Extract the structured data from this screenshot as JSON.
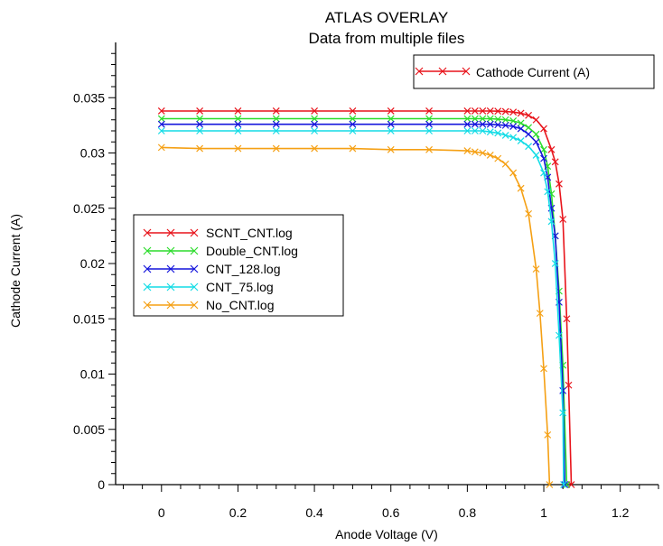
{
  "chart_data": {
    "type": "line",
    "title": "ATLAS OVERLAY",
    "subtitle": "Data from multiple files",
    "xlabel": "Anode Voltage (V)",
    "ylabel": "Cathode Current (A)",
    "xlim": [
      -0.12,
      1.3
    ],
    "ylim": [
      0,
      0.04
    ],
    "xticks": [
      0,
      0.2,
      0.4,
      0.6,
      0.8,
      1,
      1.2
    ],
    "xtick_labels": [
      "0",
      "0.2",
      "0.4",
      "0.6",
      "0.8",
      "1",
      "1.2"
    ],
    "yticks": [
      0,
      0.005,
      0.01,
      0.015,
      0.02,
      0.025,
      0.03,
      0.035
    ],
    "ytick_labels": [
      "0",
      "0.005",
      "0.01",
      "0.015",
      "0.02",
      "0.025",
      "0.03",
      "0.035"
    ],
    "grid": false,
    "legend_top": {
      "label": "Cathode Current (A)",
      "color": "#e8141b",
      "position": "top-right"
    },
    "legend_files": {
      "position": "center-left"
    },
    "marker": "x",
    "series": [
      {
        "name": "SCNT_CNT.log",
        "color": "#e8141b",
        "points": [
          [
            0,
            0.0338
          ],
          [
            0.1,
            0.0338
          ],
          [
            0.2,
            0.0338
          ],
          [
            0.3,
            0.0338
          ],
          [
            0.4,
            0.0338
          ],
          [
            0.5,
            0.0338
          ],
          [
            0.6,
            0.0338
          ],
          [
            0.7,
            0.0338
          ],
          [
            0.8,
            0.0338
          ],
          [
            0.82,
            0.0338
          ],
          [
            0.84,
            0.0338
          ],
          [
            0.86,
            0.0338
          ],
          [
            0.88,
            0.03378
          ],
          [
            0.9,
            0.03375
          ],
          [
            0.92,
            0.0337
          ],
          [
            0.94,
            0.0336
          ],
          [
            0.96,
            0.0334
          ],
          [
            0.98,
            0.033
          ],
          [
            1.0,
            0.0322
          ],
          [
            1.02,
            0.0303
          ],
          [
            1.03,
            0.0292
          ],
          [
            1.04,
            0.0272
          ],
          [
            1.05,
            0.024
          ],
          [
            1.06,
            0.015
          ],
          [
            1.065,
            0.009
          ],
          [
            1.072,
            0.0
          ]
        ]
      },
      {
        "name": "Double_CNT.log",
        "color": "#2ddc2d",
        "points": [
          [
            0,
            0.0331
          ],
          [
            0.1,
            0.0331
          ],
          [
            0.2,
            0.0331
          ],
          [
            0.3,
            0.0331
          ],
          [
            0.4,
            0.0331
          ],
          [
            0.5,
            0.0331
          ],
          [
            0.6,
            0.0331
          ],
          [
            0.7,
            0.0331
          ],
          [
            0.8,
            0.0331
          ],
          [
            0.82,
            0.0331
          ],
          [
            0.84,
            0.0331
          ],
          [
            0.86,
            0.0331
          ],
          [
            0.88,
            0.03305
          ],
          [
            0.9,
            0.033
          ],
          [
            0.92,
            0.0329
          ],
          [
            0.94,
            0.0327
          ],
          [
            0.96,
            0.0323
          ],
          [
            0.98,
            0.0317
          ],
          [
            1.0,
            0.0303
          ],
          [
            1.01,
            0.0288
          ],
          [
            1.02,
            0.0263
          ],
          [
            1.03,
            0.0225
          ],
          [
            1.04,
            0.0175
          ],
          [
            1.05,
            0.0108
          ],
          [
            1.06,
            0.0
          ]
        ]
      },
      {
        "name": "CNT_128.log",
        "color": "#1414dc",
        "points": [
          [
            0,
            0.0326
          ],
          [
            0.1,
            0.0326
          ],
          [
            0.2,
            0.0326
          ],
          [
            0.3,
            0.0326
          ],
          [
            0.4,
            0.0326
          ],
          [
            0.5,
            0.0326
          ],
          [
            0.6,
            0.0326
          ],
          [
            0.7,
            0.0326
          ],
          [
            0.8,
            0.0326
          ],
          [
            0.82,
            0.0326
          ],
          [
            0.84,
            0.0326
          ],
          [
            0.86,
            0.0326
          ],
          [
            0.88,
            0.03255
          ],
          [
            0.9,
            0.0325
          ],
          [
            0.92,
            0.0324
          ],
          [
            0.94,
            0.0322
          ],
          [
            0.96,
            0.0317
          ],
          [
            0.98,
            0.031
          ],
          [
            1.0,
            0.0295
          ],
          [
            1.01,
            0.0278
          ],
          [
            1.02,
            0.025
          ],
          [
            1.03,
            0.0225
          ],
          [
            1.04,
            0.0165
          ],
          [
            1.05,
            0.0085
          ],
          [
            1.055,
            0.0
          ]
        ]
      },
      {
        "name": "CNT_75.log",
        "color": "#14dce6",
        "points": [
          [
            0,
            0.032
          ],
          [
            0.1,
            0.032
          ],
          [
            0.2,
            0.032
          ],
          [
            0.3,
            0.032
          ],
          [
            0.4,
            0.032
          ],
          [
            0.5,
            0.032
          ],
          [
            0.6,
            0.032
          ],
          [
            0.7,
            0.032
          ],
          [
            0.8,
            0.032
          ],
          [
            0.82,
            0.032
          ],
          [
            0.84,
            0.032
          ],
          [
            0.86,
            0.0319
          ],
          [
            0.88,
            0.0318
          ],
          [
            0.9,
            0.0316
          ],
          [
            0.92,
            0.0314
          ],
          [
            0.94,
            0.0311
          ],
          [
            0.96,
            0.0306
          ],
          [
            0.98,
            0.0298
          ],
          [
            1.0,
            0.0282
          ],
          [
            1.01,
            0.0265
          ],
          [
            1.02,
            0.0238
          ],
          [
            1.03,
            0.02
          ],
          [
            1.04,
            0.0135
          ],
          [
            1.05,
            0.0065
          ],
          [
            1.052,
            0.0
          ]
        ]
      },
      {
        "name": "No_CNT.log",
        "color": "#f5a014",
        "points": [
          [
            0,
            0.0305
          ],
          [
            0.1,
            0.0304
          ],
          [
            0.2,
            0.0304
          ],
          [
            0.3,
            0.0304
          ],
          [
            0.4,
            0.0304
          ],
          [
            0.5,
            0.0304
          ],
          [
            0.6,
            0.0303
          ],
          [
            0.7,
            0.0303
          ],
          [
            0.8,
            0.0302
          ],
          [
            0.82,
            0.0301
          ],
          [
            0.84,
            0.03
          ],
          [
            0.86,
            0.0298
          ],
          [
            0.88,
            0.0295
          ],
          [
            0.9,
            0.029
          ],
          [
            0.92,
            0.0282
          ],
          [
            0.94,
            0.0268
          ],
          [
            0.96,
            0.0245
          ],
          [
            0.98,
            0.0195
          ],
          [
            0.99,
            0.0155
          ],
          [
            1.0,
            0.0105
          ],
          [
            1.01,
            0.0045
          ],
          [
            1.015,
            0.0
          ]
        ]
      }
    ]
  }
}
